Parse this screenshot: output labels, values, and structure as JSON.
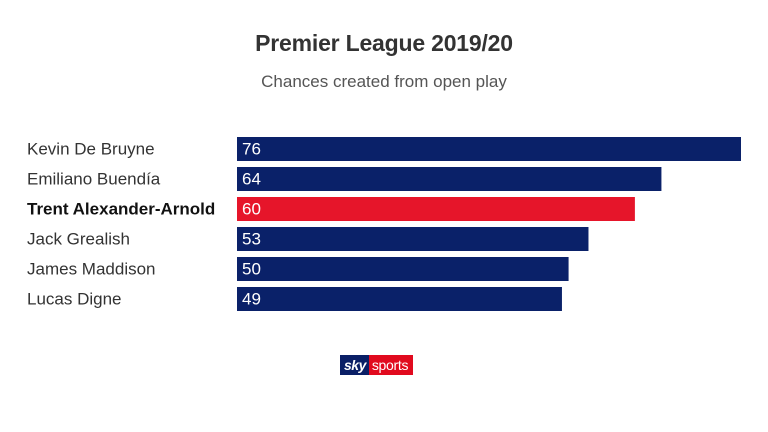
{
  "chart_data": {
    "type": "bar",
    "orientation": "horizontal",
    "title": "Premier League 2019/20",
    "subtitle": "Chances created from open play",
    "categories": [
      "Kevin De Bruyne",
      "Emiliano Buendía",
      "Trent Alexander-Arnold",
      "Jack Grealish",
      "James Maddison",
      "Lucas Digne"
    ],
    "values": [
      76,
      64,
      60,
      53,
      50,
      49
    ],
    "highlighted": "Trent Alexander-Arnold",
    "bar_color": "#0a2169",
    "highlight_color": "#e6152a",
    "xlim": [
      0,
      76
    ],
    "grid": false,
    "legend": "none"
  },
  "branding": {
    "logo_sky": "sky",
    "logo_sports": "sports"
  }
}
